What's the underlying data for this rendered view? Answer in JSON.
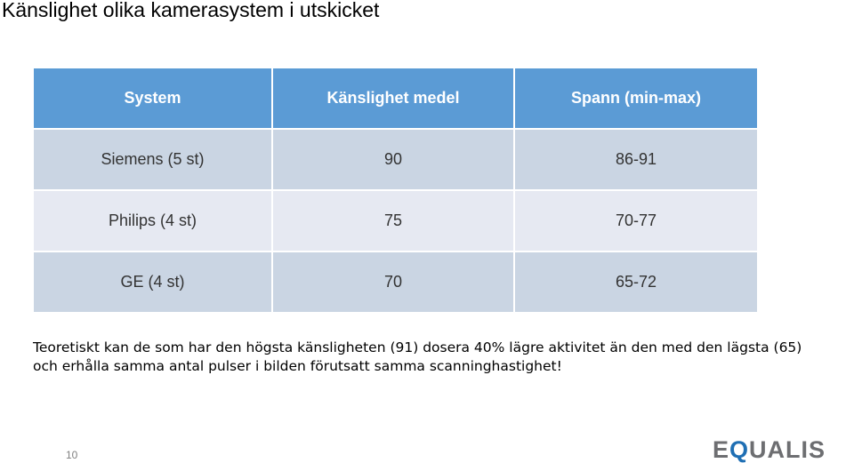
{
  "slide": {
    "title": "Känslighet olika kamerasystem i utskicket",
    "page_number": "10"
  },
  "table": {
    "headers": [
      "System",
      "Känslighet medel",
      "Spann (min-max)"
    ],
    "rows": [
      [
        "Siemens (5 st)",
        "90",
        "86-91"
      ],
      [
        "Philips (4 st)",
        "75",
        "70-77"
      ],
      [
        "GE (4 st)",
        "70",
        "65-72"
      ]
    ]
  },
  "note": {
    "text": "Teoretiskt kan de som har den högsta känsligheten (91) dosera 40% lägre aktivitet än den med den lägsta (65) och erhålla samma antal pulser i bilden förutsatt samma scanninghastighet!"
  },
  "logo": {
    "prefix": "E",
    "accent": "Q",
    "suffix": "UALIS",
    "text_color": "#6d6e71",
    "accent_color": "#1f6fb4"
  },
  "colors": {
    "header_bg": "#5b9bd5",
    "row_odd_bg": "#cad5e3",
    "row_even_bg": "#e6e9f2"
  }
}
